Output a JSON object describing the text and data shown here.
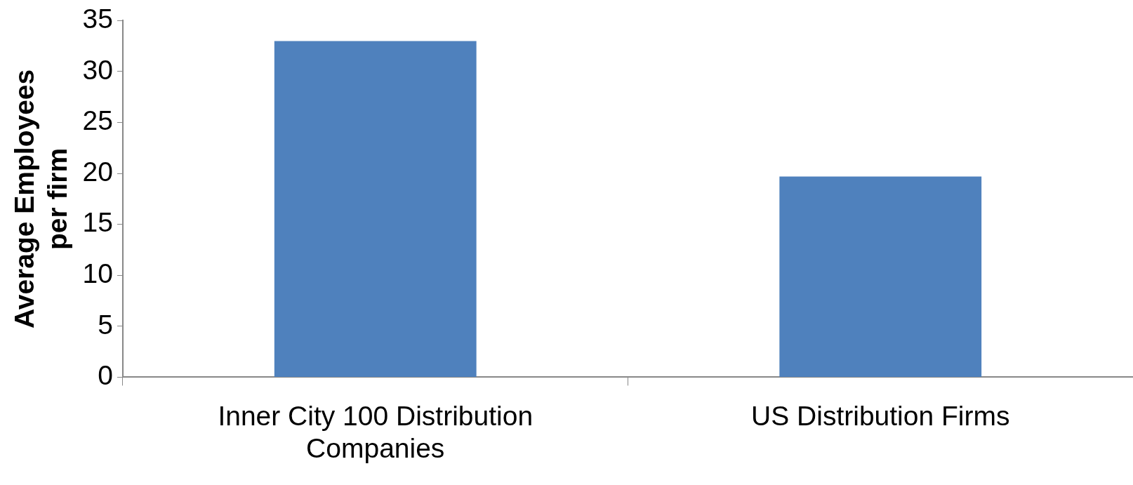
{
  "chart_data": {
    "type": "bar",
    "ylabel": "Average Employees per firm",
    "categories": [
      "Inner City 100 Distribution Companies",
      "US Distribution Firms"
    ],
    "values": [
      33,
      19.7
    ],
    "color": "#4f81bd",
    "ylim": [
      0,
      35
    ],
    "yticks": [
      0,
      5,
      10,
      15,
      20,
      25,
      30,
      35
    ],
    "grid": false,
    "legend": false
  }
}
